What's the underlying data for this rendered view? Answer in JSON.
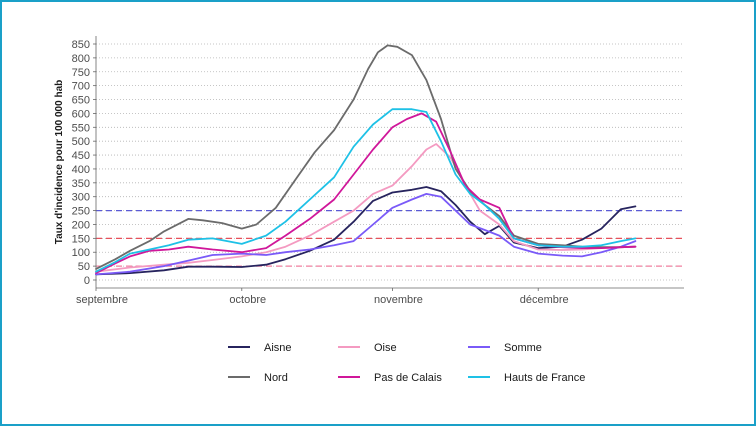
{
  "chart_data": {
    "type": "line",
    "title": "",
    "xlabel": "",
    "ylabel": "Taux d'incidence pour 100 000 hab",
    "ylim": [
      0,
      850
    ],
    "yticks": [
      0,
      50,
      100,
      150,
      200,
      250,
      300,
      350,
      400,
      450,
      500,
      550,
      600,
      650,
      700,
      750,
      800,
      850
    ],
    "xlim": [
      "2020-09-01",
      "2020-12-31"
    ],
    "xticks": [
      {
        "date": "2020-09-01",
        "label": "septembre"
      },
      {
        "date": "2020-10-01",
        "label": "octobre"
      },
      {
        "date": "2020-11-01",
        "label": "novembre"
      },
      {
        "date": "2020-12-01",
        "label": "décembre"
      }
    ],
    "grid": "horizontal dotted",
    "legend_position": "bottom",
    "reference_lines": [
      {
        "y": 250,
        "color": "#5b5bd6"
      },
      {
        "y": 150,
        "color": "#e8505b"
      },
      {
        "y": 50,
        "color": "#f07f9f"
      }
    ],
    "series": [
      {
        "name": "Aisne",
        "color": "#27245e",
        "points": [
          [
            "2020-09-01",
            20
          ],
          [
            "2020-09-08",
            25
          ],
          [
            "2020-09-15",
            35
          ],
          [
            "2020-09-20",
            48
          ],
          [
            "2020-09-25",
            48
          ],
          [
            "2020-10-01",
            47
          ],
          [
            "2020-10-06",
            55
          ],
          [
            "2020-10-10",
            75
          ],
          [
            "2020-10-15",
            105
          ],
          [
            "2020-10-20",
            145
          ],
          [
            "2020-10-24",
            210
          ],
          [
            "2020-10-28",
            285
          ],
          [
            "2020-11-01",
            315
          ],
          [
            "2020-11-05",
            325
          ],
          [
            "2020-11-08",
            335
          ],
          [
            "2020-11-11",
            320
          ],
          [
            "2020-11-14",
            270
          ],
          [
            "2020-11-17",
            210
          ],
          [
            "2020-11-20",
            165
          ],
          [
            "2020-11-23",
            195
          ],
          [
            "2020-11-26",
            135
          ],
          [
            "2020-12-01",
            115
          ],
          [
            "2020-12-06",
            120
          ],
          [
            "2020-12-10",
            145
          ],
          [
            "2020-12-14",
            185
          ],
          [
            "2020-12-18",
            255
          ],
          [
            "2020-12-21",
            265
          ]
        ]
      },
      {
        "name": "Oise",
        "color": "#f49ac1",
        "points": [
          [
            "2020-09-01",
            30
          ],
          [
            "2020-09-08",
            45
          ],
          [
            "2020-09-15",
            55
          ],
          [
            "2020-09-20",
            62
          ],
          [
            "2020-09-25",
            72
          ],
          [
            "2020-10-01",
            85
          ],
          [
            "2020-10-06",
            100
          ],
          [
            "2020-10-10",
            120
          ],
          [
            "2020-10-15",
            160
          ],
          [
            "2020-10-20",
            210
          ],
          [
            "2020-10-24",
            250
          ],
          [
            "2020-10-28",
            310
          ],
          [
            "2020-11-01",
            340
          ],
          [
            "2020-11-05",
            410
          ],
          [
            "2020-11-08",
            470
          ],
          [
            "2020-11-10",
            490
          ],
          [
            "2020-11-13",
            440
          ],
          [
            "2020-11-16",
            340
          ],
          [
            "2020-11-19",
            250
          ],
          [
            "2020-11-23",
            200
          ],
          [
            "2020-11-26",
            140
          ],
          [
            "2020-12-01",
            110
          ],
          [
            "2020-12-06",
            108
          ],
          [
            "2020-12-10",
            110
          ],
          [
            "2020-12-14",
            115
          ],
          [
            "2020-12-18",
            118
          ],
          [
            "2020-12-21",
            120
          ]
        ]
      },
      {
        "name": "Somme",
        "color": "#7a5af8",
        "points": [
          [
            "2020-09-01",
            20
          ],
          [
            "2020-09-08",
            30
          ],
          [
            "2020-09-15",
            50
          ],
          [
            "2020-09-20",
            70
          ],
          [
            "2020-09-25",
            90
          ],
          [
            "2020-10-01",
            95
          ],
          [
            "2020-10-06",
            90
          ],
          [
            "2020-10-10",
            100
          ],
          [
            "2020-10-15",
            110
          ],
          [
            "2020-10-20",
            125
          ],
          [
            "2020-10-24",
            140
          ],
          [
            "2020-10-28",
            200
          ],
          [
            "2020-11-01",
            260
          ],
          [
            "2020-11-05",
            290
          ],
          [
            "2020-11-08",
            310
          ],
          [
            "2020-11-11",
            300
          ],
          [
            "2020-11-14",
            250
          ],
          [
            "2020-11-17",
            200
          ],
          [
            "2020-11-20",
            180
          ],
          [
            "2020-11-23",
            160
          ],
          [
            "2020-11-26",
            120
          ],
          [
            "2020-12-01",
            95
          ],
          [
            "2020-12-06",
            88
          ],
          [
            "2020-12-10",
            85
          ],
          [
            "2020-12-14",
            100
          ],
          [
            "2020-12-18",
            120
          ],
          [
            "2020-12-21",
            140
          ]
        ]
      },
      {
        "name": "Nord",
        "color": "#6b6b6b",
        "points": [
          [
            "2020-09-01",
            40
          ],
          [
            "2020-09-05",
            75
          ],
          [
            "2020-09-08",
            105
          ],
          [
            "2020-09-12",
            140
          ],
          [
            "2020-09-15",
            175
          ],
          [
            "2020-09-20",
            220
          ],
          [
            "2020-09-23",
            215
          ],
          [
            "2020-09-27",
            205
          ],
          [
            "2020-10-01",
            185
          ],
          [
            "2020-10-04",
            200
          ],
          [
            "2020-10-08",
            260
          ],
          [
            "2020-10-12",
            360
          ],
          [
            "2020-10-16",
            460
          ],
          [
            "2020-10-20",
            540
          ],
          [
            "2020-10-24",
            650
          ],
          [
            "2020-10-27",
            760
          ],
          [
            "2020-10-29",
            820
          ],
          [
            "2020-10-31",
            845
          ],
          [
            "2020-11-02",
            840
          ],
          [
            "2020-11-05",
            810
          ],
          [
            "2020-11-08",
            720
          ],
          [
            "2020-11-11",
            580
          ],
          [
            "2020-11-14",
            400
          ],
          [
            "2020-11-17",
            320
          ],
          [
            "2020-11-20",
            270
          ],
          [
            "2020-11-23",
            230
          ],
          [
            "2020-11-26",
            160
          ],
          [
            "2020-12-01",
            130
          ],
          [
            "2020-12-06",
            125
          ],
          [
            "2020-12-10",
            120
          ],
          [
            "2020-12-14",
            118
          ],
          [
            "2020-12-18",
            118
          ],
          [
            "2020-12-21",
            120
          ]
        ]
      },
      {
        "name": "Pas de Calais",
        "color": "#d0179a",
        "points": [
          [
            "2020-09-01",
            25
          ],
          [
            "2020-09-05",
            60
          ],
          [
            "2020-09-08",
            85
          ],
          [
            "2020-09-12",
            105
          ],
          [
            "2020-09-16",
            110
          ],
          [
            "2020-09-20",
            120
          ],
          [
            "2020-09-25",
            110
          ],
          [
            "2020-10-01",
            100
          ],
          [
            "2020-10-06",
            115
          ],
          [
            "2020-10-10",
            160
          ],
          [
            "2020-10-15",
            220
          ],
          [
            "2020-10-20",
            290
          ],
          [
            "2020-10-24",
            380
          ],
          [
            "2020-10-28",
            470
          ],
          [
            "2020-11-01",
            550
          ],
          [
            "2020-11-04",
            580
          ],
          [
            "2020-11-07",
            600
          ],
          [
            "2020-11-10",
            570
          ],
          [
            "2020-11-13",
            460
          ],
          [
            "2020-11-16",
            340
          ],
          [
            "2020-11-19",
            290
          ],
          [
            "2020-11-23",
            260
          ],
          [
            "2020-11-26",
            150
          ],
          [
            "2020-12-01",
            125
          ],
          [
            "2020-12-06",
            118
          ],
          [
            "2020-12-10",
            115
          ],
          [
            "2020-12-14",
            115
          ],
          [
            "2020-12-18",
            118
          ],
          [
            "2020-12-21",
            120
          ]
        ]
      },
      {
        "name": "Hauts de France",
        "color": "#1ec1e6",
        "points": [
          [
            "2020-09-01",
            30
          ],
          [
            "2020-09-05",
            65
          ],
          [
            "2020-09-08",
            95
          ],
          [
            "2020-09-12",
            110
          ],
          [
            "2020-09-16",
            125
          ],
          [
            "2020-09-20",
            145
          ],
          [
            "2020-09-25",
            150
          ],
          [
            "2020-10-01",
            130
          ],
          [
            "2020-10-06",
            160
          ],
          [
            "2020-10-10",
            210
          ],
          [
            "2020-10-15",
            290
          ],
          [
            "2020-10-20",
            370
          ],
          [
            "2020-10-24",
            480
          ],
          [
            "2020-10-28",
            560
          ],
          [
            "2020-11-01",
            615
          ],
          [
            "2020-11-05",
            615
          ],
          [
            "2020-11-08",
            605
          ],
          [
            "2020-11-11",
            500
          ],
          [
            "2020-11-14",
            380
          ],
          [
            "2020-11-17",
            310
          ],
          [
            "2020-11-20",
            270
          ],
          [
            "2020-11-23",
            220
          ],
          [
            "2020-11-26",
            150
          ],
          [
            "2020-12-01",
            125
          ],
          [
            "2020-12-06",
            120
          ],
          [
            "2020-12-10",
            120
          ],
          [
            "2020-12-14",
            125
          ],
          [
            "2020-12-18",
            140
          ],
          [
            "2020-12-21",
            150
          ]
        ]
      }
    ]
  }
}
